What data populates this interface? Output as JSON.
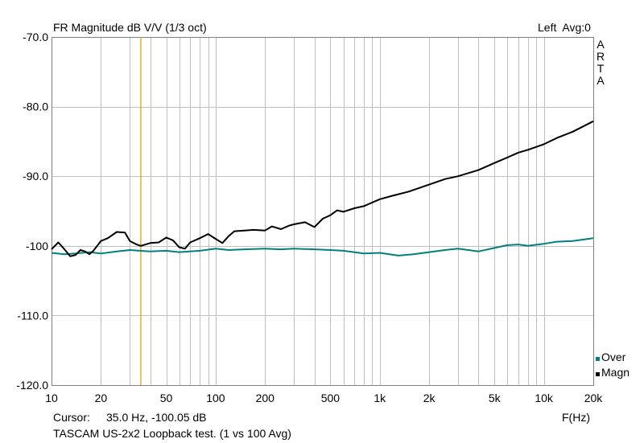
{
  "header": {
    "title": "FR Magnitude dB V/V (1/3 oct)",
    "channel_info": "Left  Avg:0",
    "brand": "ARTA"
  },
  "footer": {
    "cursor_label": "Cursor:",
    "cursor_value": "35.0 Hz, -100.05 dB",
    "description": "TASCAM US-2x2 Loopback test. (1 vs 100 Avg)",
    "xunit_label": "F(Hz)"
  },
  "colors": {
    "background": "#ffffff",
    "grid": "#c0c0c0",
    "frame": "#808080",
    "cursor": "#d4a000",
    "magn": "#000000",
    "over": "#008080"
  },
  "chart_data": {
    "type": "line",
    "title": "FR Magnitude dB V/V (1/3 oct)",
    "xlabel": "F(Hz)",
    "ylabel": "",
    "xscale": "log",
    "xlim": [
      10,
      20000
    ],
    "ylim": [
      -120,
      -70
    ],
    "grid": true,
    "legend_position": "bottom-right",
    "x_ticks": [
      10,
      20,
      50,
      100,
      200,
      500,
      1000,
      2000,
      5000,
      10000,
      20000
    ],
    "x_tick_labels": [
      "10",
      "20",
      "50",
      "100",
      "200",
      "500",
      "1k",
      "2k",
      "5k",
      "10k",
      "20k"
    ],
    "y_ticks": [
      -70,
      -80,
      -90,
      -100,
      -110,
      -120
    ],
    "y_tick_labels": [
      "-70.0",
      "-80.0",
      "-90.0",
      "-100",
      "-110.0",
      "-120.0"
    ],
    "cursor": {
      "x": 35.0,
      "y": -100.05
    },
    "series": [
      {
        "name": "Over",
        "color": "#008080",
        "x": [
          10,
          12,
          14,
          17,
          20,
          25,
          30,
          40,
          50,
          60,
          80,
          100,
          120,
          150,
          200,
          250,
          300,
          400,
          500,
          600,
          800,
          1000,
          1300,
          1600,
          2000,
          2500,
          3000,
          4000,
          5000,
          6000,
          7000,
          8000,
          10000,
          12000,
          15000,
          20000
        ],
        "y": [
          -101.0,
          -101.2,
          -101.1,
          -100.9,
          -101.1,
          -100.8,
          -100.6,
          -100.8,
          -100.7,
          -100.9,
          -100.7,
          -100.4,
          -100.6,
          -100.5,
          -100.4,
          -100.5,
          -100.4,
          -100.5,
          -100.6,
          -100.7,
          -101.1,
          -101.0,
          -101.4,
          -101.2,
          -100.9,
          -100.6,
          -100.4,
          -100.8,
          -100.3,
          -99.9,
          -99.8,
          -100.0,
          -99.7,
          -99.4,
          -99.3,
          -98.9
        ]
      },
      {
        "name": "Magn",
        "color": "#000000",
        "x": [
          10,
          11,
          12,
          13,
          14,
          15,
          16,
          17,
          18,
          19,
          20,
          22,
          25,
          28,
          30,
          33,
          35,
          40,
          45,
          50,
          55,
          60,
          65,
          70,
          80,
          90,
          100,
          110,
          120,
          130,
          150,
          170,
          200,
          220,
          250,
          280,
          300,
          350,
          400,
          450,
          500,
          550,
          600,
          700,
          800,
          1000,
          1200,
          1500,
          2000,
          2500,
          3000,
          4000,
          5000,
          6000,
          7000,
          8000,
          10000,
          12000,
          15000,
          20000
        ],
        "y": [
          -100.5,
          -99.5,
          -100.5,
          -101.5,
          -101.3,
          -100.6,
          -100.8,
          -101.2,
          -100.7,
          -100.0,
          -99.3,
          -98.9,
          -98.0,
          -98.1,
          -99.3,
          -99.8,
          -100.0,
          -99.6,
          -99.5,
          -98.8,
          -99.2,
          -100.2,
          -100.4,
          -99.5,
          -98.9,
          -98.3,
          -99.0,
          -99.6,
          -98.6,
          -97.9,
          -97.8,
          -97.7,
          -97.8,
          -97.2,
          -97.6,
          -97.1,
          -96.9,
          -96.6,
          -97.3,
          -96.1,
          -95.6,
          -94.9,
          -95.1,
          -94.6,
          -94.3,
          -93.3,
          -92.8,
          -92.2,
          -91.2,
          -90.4,
          -90.0,
          -89.1,
          -88.1,
          -87.3,
          -86.6,
          -86.2,
          -85.4,
          -84.5,
          -83.6,
          -82.1
        ]
      }
    ]
  }
}
